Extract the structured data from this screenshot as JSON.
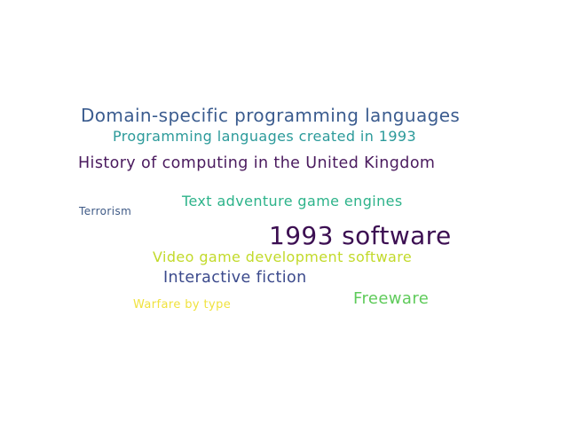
{
  "words": [
    {
      "text": "Domain-specific programming languages",
      "color": "#3b5c8f"
    },
    {
      "text": "Programming languages created in 1993",
      "color": "#2b9a9a"
    },
    {
      "text": "History of computing in the United Kingdom",
      "color": "#4a1a5e"
    },
    {
      "text": "Text adventure game engines",
      "color": "#2db38a"
    },
    {
      "text": "Terrorism",
      "color": "#3f5a86"
    },
    {
      "text": "1993 software",
      "color": "#3c0f52"
    },
    {
      "text": "Video game development software",
      "color": "#c2da2a"
    },
    {
      "text": "Interactive fiction",
      "color": "#3b4a8c"
    },
    {
      "text": "Freeware",
      "color": "#5fcb5b"
    },
    {
      "text": "Warfare by type",
      "color": "#f0e23e"
    }
  ]
}
